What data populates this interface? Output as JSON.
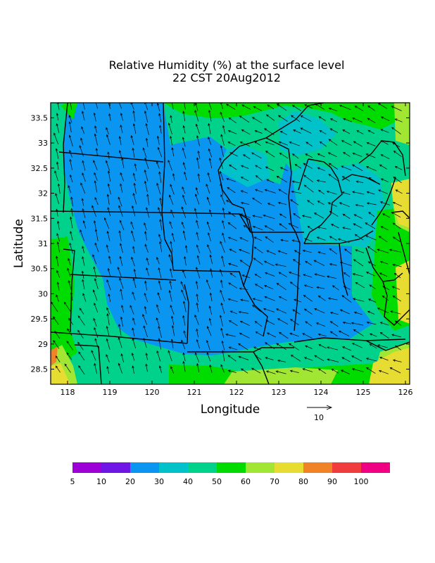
{
  "title": {
    "line1": "Relative Humidity (%) at the surface level",
    "line2": "22 CST 20Aug2012"
  },
  "axes": {
    "xlabel": "Longitude",
    "ylabel": "Latitude",
    "xrange": [
      117.6,
      126.1
    ],
    "yrange": [
      28.2,
      33.8
    ],
    "xticks": [
      "118",
      "119",
      "120",
      "121",
      "122",
      "123",
      "124",
      "125",
      "126"
    ],
    "yticks": [
      "28.5",
      "29",
      "29.5",
      "30",
      "30.5",
      "31",
      "31.5",
      "32",
      "32.5",
      "33",
      "33.5"
    ]
  },
  "vector_reference": {
    "label": "10",
    "magnitude": 10
  },
  "colorbar": {
    "labels": [
      "5",
      "10",
      "20",
      "30",
      "40",
      "50",
      "60",
      "70",
      "80",
      "90",
      "100"
    ],
    "colors": [
      "#9c00d6",
      "#6e16e6",
      "#0a96f0",
      "#00c2c8",
      "#00d28c",
      "#00dc00",
      "#a0e632",
      "#e6dc32",
      "#f08228",
      "#f03c3c",
      "#f00082"
    ]
  },
  "map_fill": {
    "background": "#00d28c",
    "blue": "#0a96f0",
    "cyan": "#00c2c8",
    "green": "#00dc00",
    "lightgreen": "#a0e632",
    "yellow": "#e6dc32",
    "orange": "#f08228"
  }
}
